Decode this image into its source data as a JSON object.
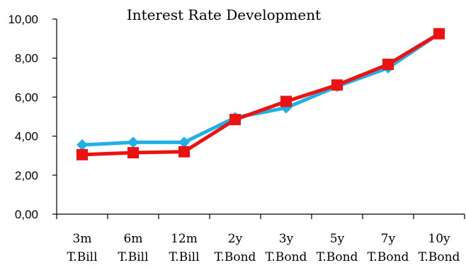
{
  "chart_data": {
    "type": "line",
    "title": "Interest Rate Development",
    "xlabel": "",
    "ylabel": "",
    "categories": [
      [
        "3m",
        "T.Bill"
      ],
      [
        "6m",
        "T.Bill"
      ],
      [
        "12m",
        "T.Bill"
      ],
      [
        "2y",
        "T.Bond"
      ],
      [
        "3y",
        "T.Bond"
      ],
      [
        "5y",
        "T.Bond"
      ],
      [
        "7y",
        "T.Bond"
      ],
      [
        "10y",
        "T.Bond"
      ]
    ],
    "ylim": [
      0,
      10
    ],
    "yticks": [
      "0,00",
      "2,00",
      "4,00",
      "6,00",
      "8,00",
      "10,00"
    ],
    "grid": false,
    "legend": "none",
    "series": [
      {
        "color": "#1fb0e8",
        "marker": "diamond",
        "values": [
          3.55,
          3.68,
          3.68,
          4.95,
          5.45,
          6.55,
          7.5,
          9.25
        ]
      },
      {
        "color": "#ee1111",
        "marker": "square",
        "values": [
          3.05,
          3.15,
          3.2,
          4.85,
          5.78,
          6.62,
          7.68,
          9.25
        ]
      }
    ]
  }
}
